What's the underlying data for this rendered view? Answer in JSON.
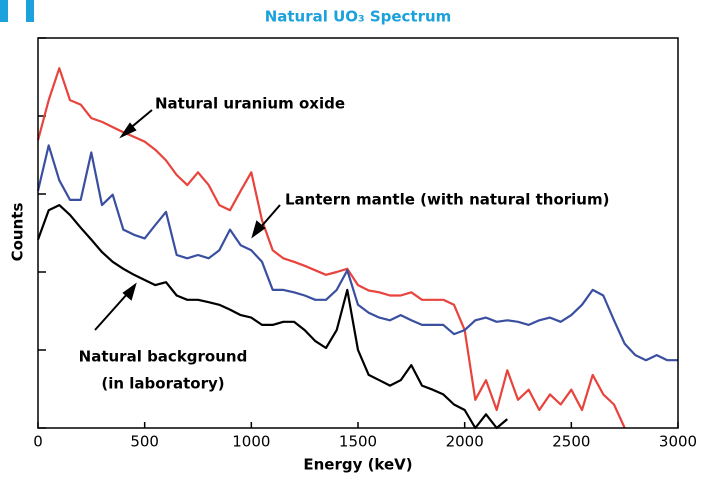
{
  "chart_data": {
    "type": "line",
    "title": "Natural UO₃ Spectrum",
    "title_color": "#1ba1dc",
    "xlabel": "Energy (keV)",
    "ylabel": "Counts",
    "xlim": [
      0,
      3000
    ],
    "xticks": [
      0,
      500,
      1000,
      1500,
      2000,
      2500,
      3000
    ],
    "ylim": [
      1,
      100000
    ],
    "yticks": [
      1,
      10,
      100,
      1000,
      10000,
      100000
    ],
    "log_y": true,
    "grid": false,
    "annotations": [
      "Natural uranium oxide",
      "Lantern mantle (with natural thorium)",
      "Natural background",
      "(in laboratory)"
    ],
    "x": [
      0,
      50,
      100,
      150,
      200,
      250,
      300,
      350,
      400,
      450,
      500,
      550,
      600,
      650,
      700,
      750,
      800,
      850,
      900,
      950,
      1000,
      1050,
      1100,
      1150,
      1200,
      1250,
      1300,
      1350,
      1400,
      1450,
      1500,
      1550,
      1600,
      1650,
      1700,
      1750,
      1800,
      1850,
      1900,
      1950,
      2000,
      2050,
      2100,
      2150,
      2200,
      2250,
      2300,
      2350,
      2400,
      2450,
      2500,
      2550,
      2600,
      2650,
      2700,
      2750,
      2800,
      2850,
      2900,
      2950,
      3000
    ],
    "series": [
      {
        "name": "Natural uranium oxide",
        "color": "#e8433c",
        "values": [
          4900,
          16000,
          41000,
          16000,
          14000,
          9400,
          8400,
          7200,
          6200,
          5400,
          4700,
          3700,
          2700,
          1750,
          1300,
          1900,
          1300,
          720,
          620,
          1100,
          1900,
          460,
          190,
          150,
          135,
          120,
          105,
          92,
          100,
          110,
          68,
          58,
          55,
          50,
          50,
          55,
          44,
          44,
          44,
          38,
          18,
          2.3,
          4.1,
          1.7,
          5.5,
          2.3,
          3.1,
          1.7,
          2.7,
          2,
          3.1,
          1.7,
          4.8,
          2.7,
          2,
          1,
          null,
          null,
          null,
          null,
          null
        ]
      },
      {
        "name": "Lantern mantle (with natural thorium)",
        "color": "#3a4fa0",
        "values": [
          1100,
          4200,
          1500,
          840,
          840,
          3400,
          720,
          980,
          350,
          300,
          270,
          400,
          590,
          165,
          150,
          165,
          150,
          190,
          350,
          220,
          190,
          135,
          59,
          59,
          55,
          50,
          44,
          44,
          59,
          105,
          38,
          30,
          26,
          24,
          28,
          24,
          21,
          21,
          21,
          16,
          18,
          24,
          26,
          23,
          24,
          23,
          21,
          24,
          26,
          23,
          28,
          38,
          59,
          50,
          24,
          12,
          8.6,
          7.4,
          8.6,
          7.4,
          7.4
        ]
      },
      {
        "name": "Natural background (in laboratory)",
        "color": "#000000",
        "values": [
          260,
          620,
          720,
          540,
          370,
          260,
          180,
          135,
          110,
          92,
          79,
          68,
          74,
          50,
          44,
          44,
          41,
          38,
          33,
          28,
          26,
          21,
          21,
          23,
          23,
          18,
          13,
          10.6,
          18,
          59,
          10,
          4.8,
          4.1,
          3.5,
          4.1,
          6.4,
          3.5,
          3.1,
          2.7,
          2,
          1.7,
          1,
          1.5,
          1,
          1.3,
          null,
          null,
          null,
          null,
          null,
          null,
          null,
          null,
          null,
          null,
          null,
          null,
          null,
          null,
          null,
          null
        ]
      }
    ]
  }
}
